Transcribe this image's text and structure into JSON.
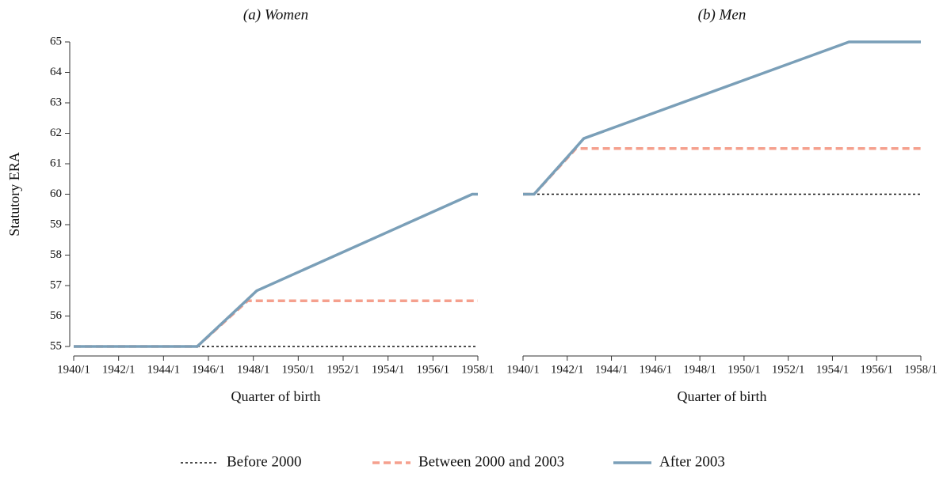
{
  "chart_data": [
    {
      "type": "line",
      "title": "(a) Women",
      "xlabel": "Quarter of birth",
      "ylabel": "Statutory ERA",
      "x": [
        1940,
        1945.5,
        1947.75,
        1948.15,
        1957.75,
        1958
      ],
      "series": [
        {
          "name": "Before 2000",
          "color": "#111111",
          "values": [
            55,
            55,
            55,
            55,
            55,
            55
          ]
        },
        {
          "name": "Between 2000 and 2003",
          "color": "#f5a08e",
          "values": [
            55,
            55,
            56.5,
            56.5,
            56.5,
            56.5
          ]
        },
        {
          "name": "After 2003",
          "color": "#7a9fb8",
          "values": [
            55,
            55,
            56.55,
            56.83,
            60,
            60
          ]
        }
      ],
      "xlim": [
        1940,
        1958
      ],
      "xticks": [
        {
          "value": 1940,
          "label": "1940/1"
        },
        {
          "value": 1942,
          "label": "1942/1"
        },
        {
          "value": 1944,
          "label": "1944/1"
        },
        {
          "value": 1946,
          "label": "1946/1"
        },
        {
          "value": 1948,
          "label": "1948/1"
        },
        {
          "value": 1950,
          "label": "1950/1"
        },
        {
          "value": 1952,
          "label": "1952/1"
        },
        {
          "value": 1954,
          "label": "1954/1"
        },
        {
          "value": 1956,
          "label": "1956/1"
        },
        {
          "value": 1958,
          "label": "1958/1"
        }
      ],
      "ylim": [
        55,
        65
      ],
      "yticks": [
        55,
        56,
        57,
        58,
        59,
        60,
        61,
        62,
        63,
        64,
        65
      ]
    },
    {
      "type": "line",
      "title": "(b) Men",
      "xlabel": "Quarter of birth",
      "x": [
        1940,
        1940.5,
        1942.4,
        1942.75,
        1954.75,
        1958
      ],
      "series": [
        {
          "color": "#111111",
          "values": [
            60,
            60,
            60,
            60,
            60,
            60
          ]
        },
        {
          "color": "#f5a08e",
          "values": [
            60,
            60,
            61.5,
            61.5,
            61.5,
            61.5
          ]
        },
        {
          "color": "#7a9fb8",
          "values": [
            60,
            60,
            61.54,
            61.83,
            65,
            65
          ]
        }
      ],
      "xlim": [
        1940,
        1958
      ],
      "xticks": [
        {
          "value": 1940,
          "label": "1940/1"
        },
        {
          "value": 1942,
          "label": "1942/1"
        },
        {
          "value": 1944,
          "label": "1944/1"
        },
        {
          "value": 1946,
          "label": "1946/1"
        },
        {
          "value": 1948,
          "label": "1948/1"
        },
        {
          "value": 1950,
          "label": "1950/1"
        },
        {
          "value": 1952,
          "label": "1952/1"
        },
        {
          "value": 1954,
          "label": "1954/1"
        },
        {
          "value": 1956,
          "label": "1956/1"
        },
        {
          "value": 1958,
          "label": "1958/1"
        }
      ],
      "ylim": [
        55,
        65
      ]
    }
  ]
}
